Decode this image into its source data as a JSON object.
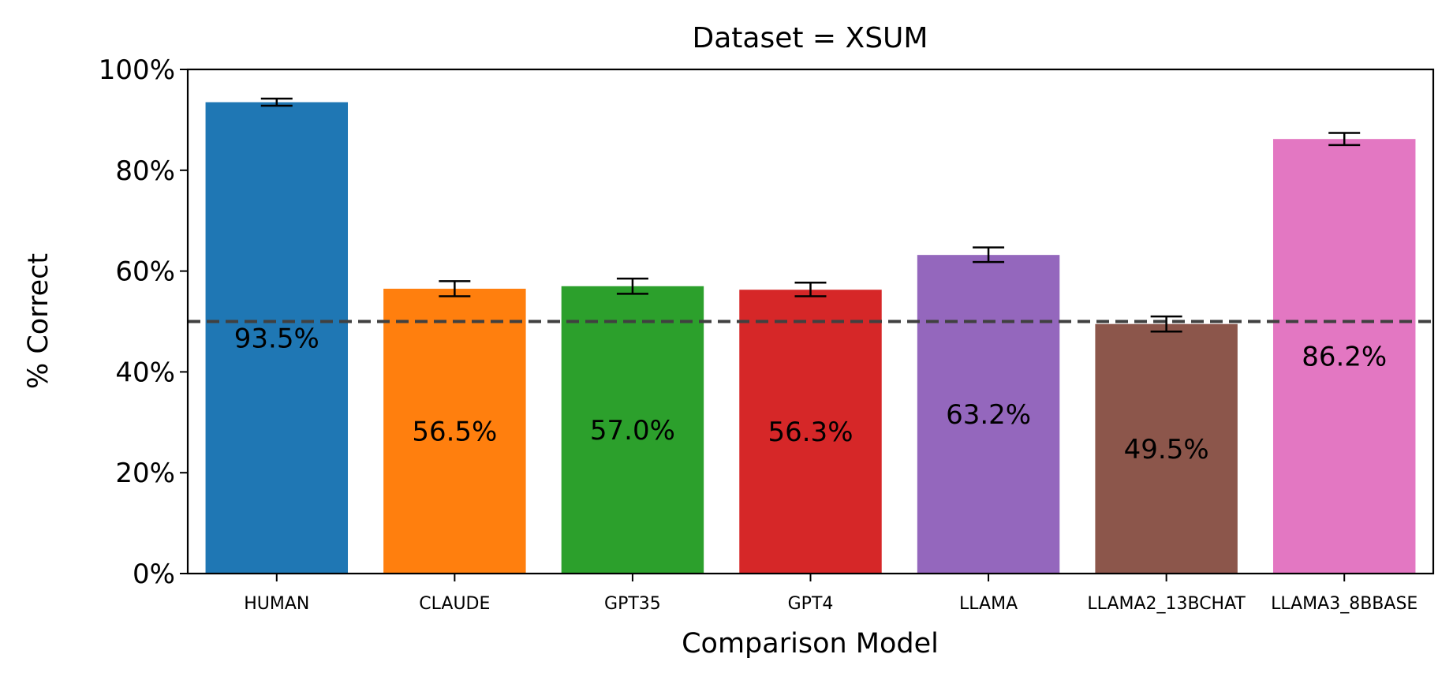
{
  "chart_data": {
    "type": "bar",
    "title": "Dataset = XSUM",
    "xlabel": "Comparison Model",
    "ylabel": "% Correct",
    "ylim": [
      0,
      100
    ],
    "yticks": [
      "0%",
      "20%",
      "40%",
      "60%",
      "80%",
      "100%"
    ],
    "categories": [
      "HUMAN",
      "CLAUDE",
      "GPT35",
      "GPT4",
      "LLAMA",
      "LLAMA2_13BCHAT",
      "LLAMA3_8BBASE"
    ],
    "values": [
      93.5,
      56.5,
      57.0,
      56.3,
      63.2,
      49.5,
      86.2
    ],
    "value_labels": [
      "93.5%",
      "56.5%",
      "57.0%",
      "56.3%",
      "63.2%",
      "49.5%",
      "86.2%"
    ],
    "error_low": [
      92.8,
      55.0,
      55.5,
      55.0,
      61.8,
      48.0,
      85.0
    ],
    "error_high": [
      94.2,
      58.0,
      58.5,
      57.7,
      64.7,
      51.0,
      87.4
    ],
    "colors": [
      "#1f77b4",
      "#ff7f0e",
      "#2ca02c",
      "#d62728",
      "#9467bd",
      "#8c564b",
      "#e377c2"
    ],
    "reference_line": {
      "value": 50,
      "style": "dashed",
      "color": "#404040"
    },
    "grid": false,
    "legend": "none"
  }
}
